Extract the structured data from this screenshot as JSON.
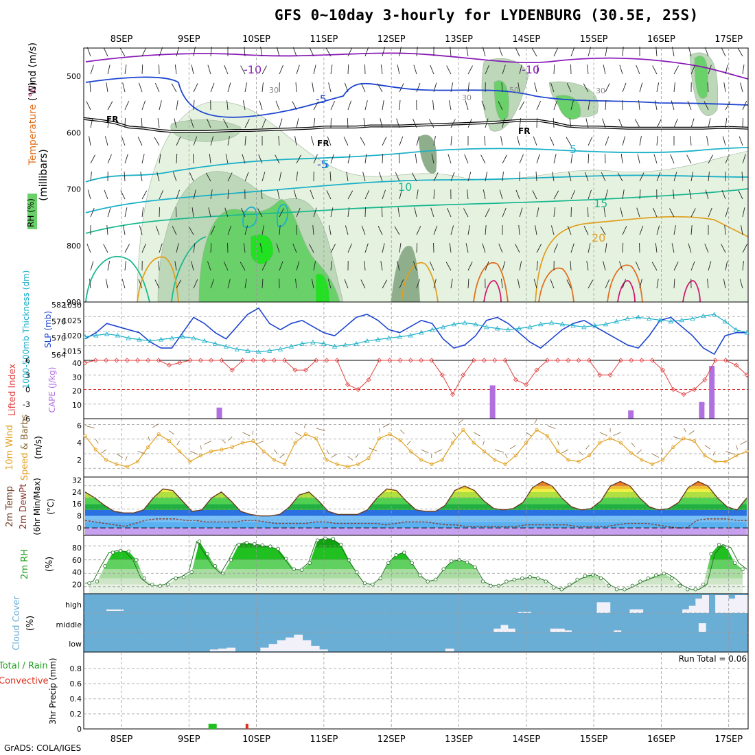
{
  "title": "GFS 0~10day 3-hourly for LYDENBURG (30.5E, 25S)",
  "credit": "GrADS: COLA/IGES",
  "dates": [
    "8SEP",
    "9SEP",
    "10SEP",
    "11SEP",
    "12SEP",
    "13SEP",
    "14SEP",
    "15SEP",
    "16SEP",
    "17SEP"
  ],
  "colors": {
    "purple": "#8a1ab8",
    "blue": "#1c44d0",
    "cyan": "#1ab0c8",
    "teal": "#1ab890",
    "orange": "#e0a020",
    "dkorange": "#e07020",
    "magenta": "#d01870",
    "rh_light": "#e6f2e0",
    "rh_mid": "#bcd8b8",
    "rh_dark": "#8fae8c",
    "rh_green": "#6ad06a",
    "rh_bright": "#22e022",
    "cloud": "#6aaed6"
  },
  "chart_data": [
    {
      "type": "contour",
      "name": "upper-air cross-section",
      "ylabel": "(millibars)",
      "legend_labels": [
        "RH (%)",
        "Temperature (°C)",
        "Wind (m/s)"
      ],
      "y_ticks": [
        500,
        600,
        700,
        800,
        900
      ],
      "ylim": [
        450,
        900
      ],
      "temperature_contour_labels": [
        "-10",
        "-10",
        "-5",
        "-5",
        "5",
        "5",
        "10",
        "15",
        "20"
      ],
      "freezing_labels": [
        "FR",
        "FR",
        "FR"
      ],
      "rh_labels": [
        "30",
        "30",
        "50",
        "30"
      ],
      "freezing_level_mb": [
        575,
        578,
        582,
        590,
        592,
        596,
        598,
        598,
        598,
        597,
        596,
        596,
        595,
        594,
        593,
        592,
        590,
        590,
        590,
        588,
        588,
        588,
        587,
        586,
        585,
        584,
        583,
        582,
        580,
        578,
        578,
        582,
        588,
        590,
        590,
        591,
        592,
        592,
        592,
        592,
        592,
        592,
        591,
        591,
        592
      ]
    },
    {
      "type": "line",
      "name": "sea level pressure and thickness",
      "ylabel_left": "1000-500mb Thickness (dm)",
      "ylabel_right": "SLP (mb)",
      "y_ticks_left": [
        564,
        570,
        576,
        582
      ],
      "y_ticks_right": [
        1015,
        1020,
        1025,
        1030
      ],
      "slp_mb": [
        1019,
        1021,
        1024,
        1023,
        1022,
        1021,
        1018,
        1016,
        1016,
        1021,
        1026,
        1024,
        1021,
        1019,
        1023,
        1027,
        1029,
        1024,
        1022,
        1024,
        1025,
        1023,
        1021,
        1020,
        1023,
        1026,
        1027,
        1025,
        1022,
        1021,
        1023,
        1025,
        1024,
        1019,
        1016,
        1017,
        1020,
        1025,
        1026,
        1024,
        1021,
        1018,
        1016,
        1019,
        1022,
        1024,
        1025,
        1023,
        1021,
        1019,
        1017,
        1016,
        1020,
        1025,
        1026,
        1023,
        1020,
        1016,
        1014,
        1020,
        1021,
        1021
      ],
      "thickness_dm": [
        570.5,
        571,
        571.5,
        571,
        570,
        569.5,
        569,
        569.5,
        570,
        570.5,
        570,
        569,
        568,
        567,
        566,
        565.5,
        565,
        565.5,
        566,
        567,
        568,
        568.5,
        568,
        567,
        567.5,
        568,
        569,
        569.5,
        570,
        570.5,
        571,
        572,
        573,
        574,
        575,
        575.5,
        575,
        574,
        573.5,
        573,
        573.5,
        574,
        575,
        575.5,
        575,
        574.5,
        574,
        574.5,
        575,
        576,
        577,
        577.5,
        577,
        576.5,
        576,
        576.5,
        577,
        578,
        578.5,
        576,
        573,
        572
      ]
    },
    {
      "type": "bar+line",
      "name": "CAPE and lifted index",
      "ylabel_left": "Lifted Index",
      "ylabel_right": "CAPE (J/kg)",
      "y_ticks_left": [
        -6,
        -3,
        0,
        3,
        6
      ],
      "y_ticks_right": [
        10,
        20,
        30,
        40
      ],
      "lifted_index": [
        5.5,
        6,
        6,
        6,
        6,
        6,
        6,
        6,
        5,
        5.5,
        6,
        6,
        6,
        6,
        4,
        6,
        6,
        6,
        6,
        6,
        4,
        4,
        6,
        6,
        6,
        1,
        0,
        2,
        6,
        6,
        6,
        6,
        6,
        6,
        3,
        -1,
        3,
        6,
        6,
        6,
        6,
        2,
        1,
        4,
        6,
        6,
        6,
        6,
        6,
        3,
        3,
        6,
        6,
        6,
        6,
        4,
        0,
        -1,
        0,
        2,
        6,
        6,
        5,
        3
      ],
      "cape_bars": [
        {
          "day": 1.45,
          "value": 8
        },
        {
          "day": 5.5,
          "value": 24
        },
        {
          "day": 7.55,
          "value": 6
        },
        {
          "day": 8.6,
          "value": 12
        },
        {
          "day": 8.75,
          "value": 38
        }
      ]
    },
    {
      "type": "line",
      "name": "10m wind",
      "ylabel": "10m Wind Speed & Barbs (m/s)",
      "y_ticks": [
        2,
        4,
        6
      ],
      "speed_ms": [
        4.8,
        3.2,
        2,
        1.5,
        1.2,
        1.8,
        3.5,
        5,
        4.2,
        3,
        1.8,
        2.5,
        3,
        3.2,
        3.5,
        4,
        4.2,
        3,
        2,
        1.5,
        4,
        5,
        4.5,
        2,
        1.5,
        1.2,
        1.5,
        2.2,
        4.5,
        5,
        4.3,
        3,
        2,
        1.5,
        2,
        4,
        5.5,
        4,
        3,
        2,
        1.5,
        2.5,
        4,
        5.5,
        4.8,
        3,
        2,
        1.8,
        2.5,
        4,
        4.5,
        4,
        2.8,
        2,
        1.5,
        2,
        3.5,
        4.5,
        4.2,
        2.5,
        1.8,
        1.8,
        2.5,
        3
      ]
    },
    {
      "type": "area",
      "name": "2m temperature and dewpoint",
      "ylabel": "2m Temp 2m DewPt (6hr Min/Max) (°C)",
      "y_ticks": [
        0,
        8,
        16,
        24,
        32
      ],
      "temp_c": [
        24,
        20,
        15,
        11,
        10,
        10,
        12,
        20,
        26,
        25,
        18,
        11,
        12,
        20,
        24,
        18,
        11,
        9,
        8,
        8,
        9,
        14,
        22,
        24,
        18,
        11,
        9,
        9,
        9,
        12,
        20,
        26,
        25,
        18,
        12,
        11,
        11,
        15,
        25,
        28,
        25,
        18,
        13,
        12,
        13,
        17,
        27,
        31,
        28,
        20,
        14,
        12,
        13,
        18,
        28,
        31,
        28,
        20,
        14,
        12,
        13,
        17,
        27,
        31,
        28,
        20,
        14,
        12,
        20
      ],
      "dewpt_c": [
        5,
        4,
        3,
        2,
        1,
        3,
        5,
        6,
        6,
        6,
        5,
        5,
        4,
        4,
        4,
        4,
        5,
        5,
        4,
        3,
        3,
        3,
        3,
        4,
        4,
        3,
        3,
        3,
        3,
        3,
        2,
        3,
        4,
        4,
        4,
        3,
        2,
        2,
        1,
        1,
        1,
        1,
        1,
        1,
        2,
        2,
        2,
        2,
        2,
        1,
        1,
        1,
        1,
        2,
        3,
        3,
        3,
        2,
        1,
        0,
        0,
        5,
        6,
        6,
        6,
        5,
        5
      ]
    },
    {
      "type": "area",
      "name": "2m relative humidity",
      "ylabel": "2m RH (%)",
      "y_ticks": [
        20,
        40,
        60,
        80
      ],
      "rh_pct": [
        22,
        25,
        50,
        72,
        75,
        74,
        60,
        30,
        20,
        18,
        20,
        30,
        32,
        40,
        90,
        70,
        50,
        38,
        60,
        85,
        88,
        86,
        84,
        82,
        78,
        62,
        45,
        44,
        55,
        92,
        95,
        94,
        85,
        60,
        40,
        22,
        20,
        30,
        55,
        68,
        72,
        55,
        35,
        25,
        28,
        45,
        58,
        60,
        56,
        48,
        25,
        18,
        18,
        25,
        28,
        30,
        32,
        30,
        25,
        15,
        12,
        20,
        28,
        34,
        36,
        30,
        18,
        12,
        12,
        18,
        25,
        30,
        35,
        38,
        30,
        18,
        12,
        12,
        20,
        70,
        85,
        80,
        55,
        45
      ]
    },
    {
      "type": "heatmap",
      "name": "cloud cover",
      "ylabel": "Cloud Cover (%)",
      "y_ticks": [
        "high",
        "middle",
        "low"
      ],
      "low_pct": [
        0,
        0,
        0,
        0,
        0,
        0,
        0,
        0,
        0,
        0,
        0,
        0,
        0,
        0,
        0,
        10,
        15,
        20,
        0,
        0,
        0,
        20,
        40,
        60,
        75,
        90,
        60,
        30,
        10,
        0,
        0,
        0,
        0,
        0,
        0,
        0,
        0,
        0,
        0,
        0,
        0,
        0,
        0,
        15,
        0,
        0,
        0,
        0,
        0,
        0,
        0,
        0,
        0,
        0,
        0,
        0,
        0,
        0,
        0,
        0,
        0,
        0,
        0,
        0,
        0,
        0,
        0,
        0,
        0,
        0,
        0,
        0,
        0,
        0,
        0,
        0,
        0,
        0,
        0
      ],
      "middle_pct": [
        0,
        0,
        0,
        0,
        0,
        0,
        0,
        0,
        0,
        0,
        0,
        0,
        0,
        0,
        0,
        0,
        0,
        0,
        0,
        0,
        0,
        0,
        0,
        0,
        0,
        0,
        0,
        0,
        0,
        0,
        0,
        0,
        0,
        0,
        0,
        0,
        0,
        0,
        0,
        0,
        0,
        0,
        0,
        0,
        0,
        0,
        0,
        0,
        0,
        0,
        0,
        0,
        0,
        0,
        0,
        0,
        0,
        0,
        20,
        40,
        20,
        0,
        0,
        0,
        0,
        0,
        20,
        20,
        10,
        0,
        0,
        0,
        0,
        0,
        0,
        10,
        0,
        0,
        0,
        0,
        0,
        0,
        0,
        0,
        0,
        0,
        0,
        50,
        0,
        0,
        0,
        0,
        0,
        0
      ],
      "high_pct": [
        0,
        0,
        0,
        0,
        0,
        0,
        0,
        0,
        0,
        0,
        0,
        0,
        0,
        0,
        0,
        0,
        0,
        0,
        0,
        0,
        0,
        0,
        0,
        0,
        0,
        0,
        0,
        0,
        0,
        0,
        0,
        0,
        0,
        0,
        0,
        0,
        0,
        0,
        0,
        0,
        0,
        0,
        0,
        0,
        0,
        0,
        0,
        0,
        0,
        0,
        0,
        0,
        0,
        0,
        0,
        0,
        0,
        0,
        0,
        0,
        0,
        0,
        0,
        0,
        0,
        0,
        5,
        5,
        0,
        0,
        0,
        0,
        0,
        0,
        0,
        0,
        0,
        0,
        60,
        60,
        0,
        0,
        0,
        20,
        20,
        0,
        0,
        0,
        0,
        0,
        0,
        20,
        40,
        80,
        100,
        0,
        100,
        100,
        80,
        100,
        100
      ]
    },
    {
      "type": "bar",
      "name": "3hr precipitation",
      "ylabel": "3hr Precip (mm)",
      "legend_labels": [
        "Total / Rain",
        "Convective"
      ],
      "run_total": "Run Total = 0.06",
      "y_ticks": [
        0,
        0.2,
        0.4,
        0.6,
        0.8
      ],
      "ylim": [
        0,
        1.0
      ],
      "total_bars": [
        {
          "day": 1.35,
          "value": 0.03
        }
      ],
      "convective_bars": [
        {
          "day": 1.86,
          "value": 0.03
        }
      ]
    }
  ]
}
